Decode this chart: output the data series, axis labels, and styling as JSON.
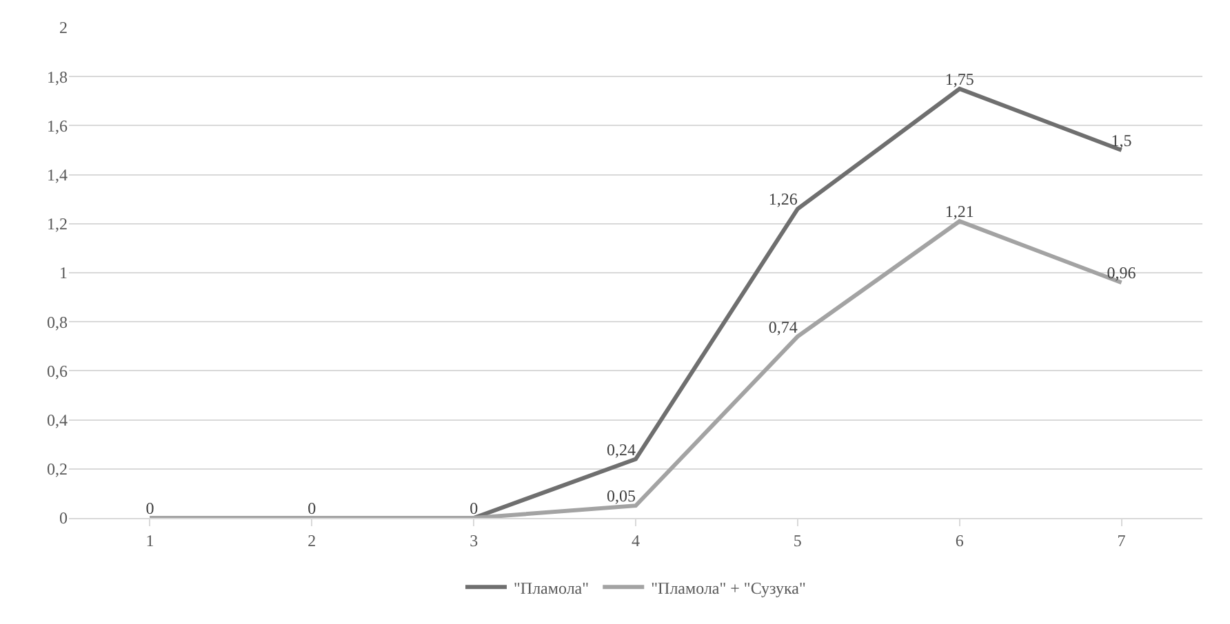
{
  "chart_data": {
    "type": "line",
    "categories": [
      "1",
      "2",
      "3",
      "4",
      "5",
      "6",
      "7"
    ],
    "series": [
      {
        "name": "\"Пламола\"",
        "color": "#6f6f6f",
        "values": [
          0,
          0,
          0,
          0.24,
          1.26,
          1.75,
          1.5
        ],
        "value_labels": [
          "0",
          "0",
          "0",
          "0,24",
          "1,26",
          "1,75",
          "1,5"
        ]
      },
      {
        "name": "\"Пламола\" + \"Сузука\"",
        "color": "#a3a3a3",
        "values": [
          0,
          0,
          0,
          0.05,
          0.74,
          1.21,
          0.96
        ],
        "value_labels": [
          null,
          null,
          null,
          "0,05",
          "0,74",
          "1,21",
          "0,96"
        ]
      }
    ],
    "ylim": [
      0,
      2
    ],
    "yticks": [
      0,
      {
        "value": 0.2,
        "label": "0,2"
      },
      {
        "value": 0.4,
        "label": "0,4"
      },
      {
        "value": 0.6,
        "label": "0,6"
      },
      {
        "value": 0.8,
        "label": "0,8"
      },
      1,
      {
        "value": 1.2,
        "label": "1,2"
      },
      {
        "value": 1.4,
        "label": "1,4"
      },
      {
        "value": 1.6,
        "label": "1,6"
      },
      {
        "value": 1.8,
        "label": "1,8"
      },
      2
    ],
    "grid": "y",
    "legend": "bottom",
    "marker": "none",
    "line_style": "solid"
  }
}
